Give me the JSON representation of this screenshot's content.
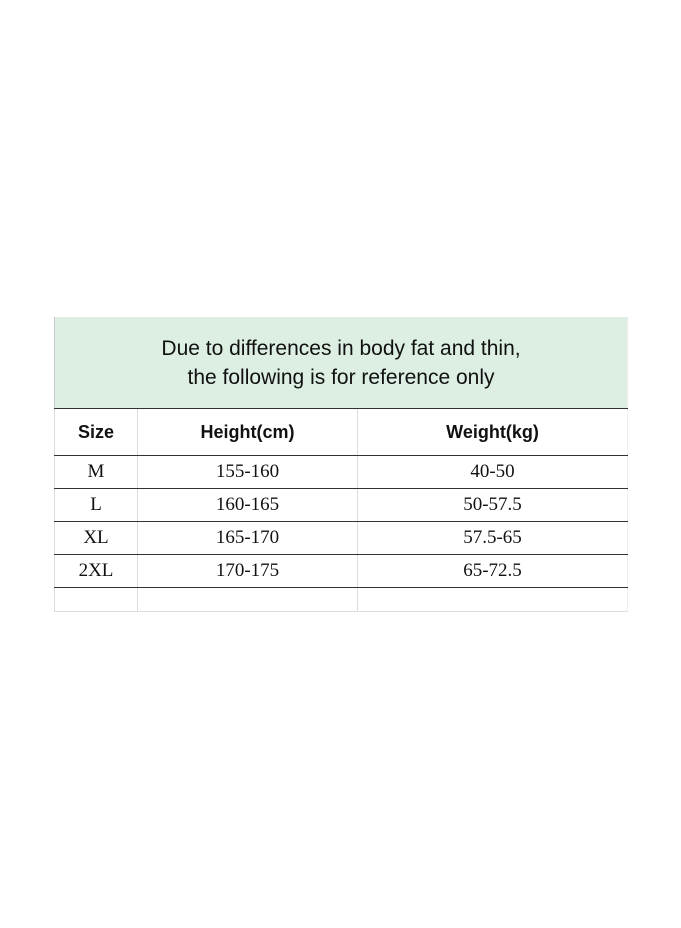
{
  "note": {
    "line1": "Due to differences in body fat and thin,",
    "line2": "the following is for reference only"
  },
  "headers": [
    "Size",
    "Height(cm)",
    "Weight(kg)"
  ],
  "rows": [
    [
      "M",
      "155-160",
      "40-50"
    ],
    [
      "L",
      "160-165",
      "50-57.5"
    ],
    [
      "XL",
      "165-170",
      "57.5-65"
    ],
    [
      "2XL",
      "170-175",
      "65-72.5"
    ]
  ],
  "colors": {
    "note_background": "#dcefe2"
  }
}
